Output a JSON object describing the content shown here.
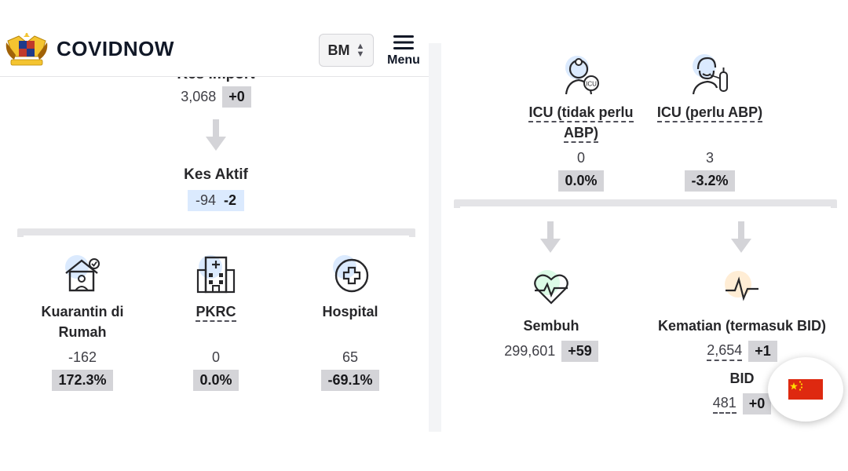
{
  "header": {
    "brand": "COVIDNOW",
    "language": "BM",
    "menu_label": "Menu"
  },
  "left": {
    "import_title": "Kes Import",
    "import_value": "3,068",
    "import_delta": "+0",
    "active_title": "Kes Aktif",
    "active_value": "-94",
    "active_delta": "-2",
    "stats": [
      {
        "label_line1": "Kuarantin di",
        "label_line2": "Rumah",
        "value": "-162",
        "pct": "172.3%",
        "icon": "home-quarantine-icon"
      },
      {
        "label_line1": "PKRC",
        "value": "0",
        "pct": "0.0%",
        "icon": "building-icon"
      },
      {
        "label_line1": "Hospital",
        "value": "65",
        "pct": "-69.1%",
        "icon": "hospital-cross-icon"
      }
    ]
  },
  "right": {
    "icu_no_vent": {
      "label_line1": "ICU (tidak perlu",
      "label_line2": "ABP)",
      "value": "0",
      "pct": "0.0%",
      "icon": "doctor-icu-icon"
    },
    "icu_vent": {
      "label_line1": "ICU (perlu ABP)",
      "value": "3",
      "pct": "-3.2%",
      "icon": "ventilator-patient-icon"
    },
    "recovered": {
      "label": "Sembuh",
      "value": "299,601",
      "delta": "+59",
      "icon": "heartbeat-icon"
    },
    "deaths": {
      "label": "Kematian (termasuk BID)",
      "value": "2,654",
      "delta": "+1",
      "bid_label": "BID",
      "bid_value": "481",
      "bid_delta": "+0",
      "icon": "pulse-line-icon"
    }
  },
  "colors": {
    "chip_grey": "#d4d4d8",
    "chip_blue": "#dbeafe",
    "icon_bg_blue": "#dbeafe",
    "icon_bg_green": "#dcfce7",
    "icon_bg_orange": "#ffedd5",
    "flag_red": "#de2910",
    "flag_yellow": "#ffde00"
  }
}
